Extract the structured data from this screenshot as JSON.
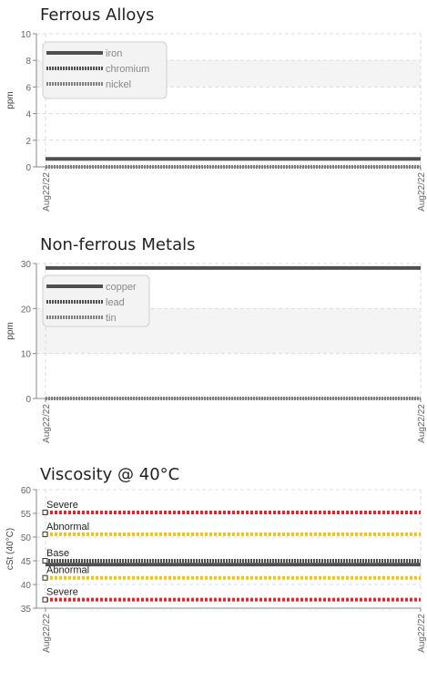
{
  "chart_data": [
    {
      "type": "line",
      "title": "Ferrous Alloys",
      "ylabel": "ppm",
      "ylim": [
        0,
        10
      ],
      "yticks": [
        0,
        2,
        4,
        6,
        8,
        10
      ],
      "x_tick_labels": [
        "Aug22/22",
        "Aug22/22"
      ],
      "grid": true,
      "legend_position": "top-left",
      "series": [
        {
          "name": "iron",
          "values": [
            0.6,
            0.6
          ],
          "color": "#505050",
          "style": "solid"
        },
        {
          "name": "chromium",
          "values": [
            0,
            0
          ],
          "color": "#505050",
          "style": "dotted"
        },
        {
          "name": "nickel",
          "values": [
            0,
            0
          ],
          "color": "#808080",
          "style": "dotted"
        }
      ]
    },
    {
      "type": "line",
      "title": "Non-ferrous Metals",
      "ylabel": "ppm",
      "ylim": [
        0,
        30
      ],
      "yticks": [
        0,
        10,
        20,
        30
      ],
      "x_tick_labels": [
        "Aug22/22",
        "Aug22/22"
      ],
      "grid": true,
      "legend_position": "top-left",
      "series": [
        {
          "name": "copper",
          "values": [
            29,
            29
          ],
          "color": "#505050",
          "style": "solid"
        },
        {
          "name": "lead",
          "values": [
            0,
            0
          ],
          "color": "#505050",
          "style": "dotted"
        },
        {
          "name": "tin",
          "values": [
            0,
            0
          ],
          "color": "#808080",
          "style": "dotted"
        }
      ]
    },
    {
      "type": "line",
      "title": "Viscosity @ 40°C",
      "ylabel": "cSt (40°C)",
      "ylim": [
        35,
        60
      ],
      "yticks": [
        35,
        40,
        45,
        50,
        55,
        60
      ],
      "x_tick_labels": [
        "Aug22/22",
        "Aug22/22"
      ],
      "grid": true,
      "series": [
        {
          "name": "",
          "values": [
            44.2,
            44.2
          ],
          "color": "#505050",
          "style": "solid"
        }
      ],
      "limits": [
        {
          "label": "Severe",
          "value": 55.2,
          "color": "#e8232a"
        },
        {
          "label": "Abnormal",
          "value": 50.6,
          "color": "#f2c412"
        },
        {
          "label": "Base",
          "value": 45.0,
          "color": "#505050"
        },
        {
          "label": "Abnormal",
          "value": 41.4,
          "color": "#f2c412"
        },
        {
          "label": "Severe",
          "value": 36.8,
          "color": "#e8232a"
        }
      ]
    }
  ]
}
